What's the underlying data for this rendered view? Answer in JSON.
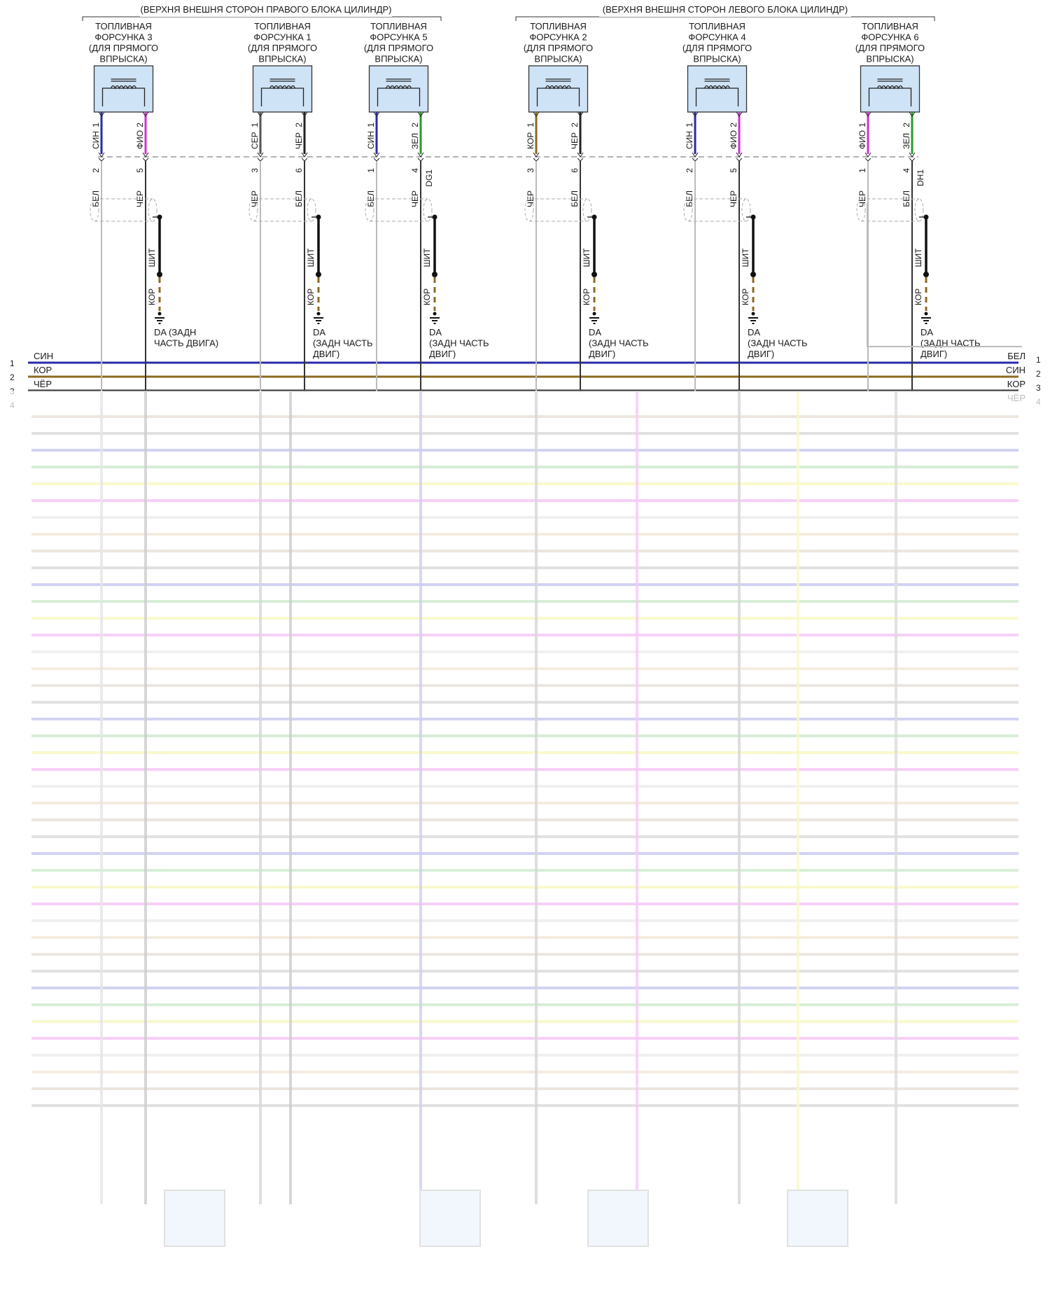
{
  "groups": [
    {
      "label": "(ВЕРХНЯ ВНЕШНЯ СТОРОН ПРАВОГО БЛОКА ЦИЛИНДР)"
    },
    {
      "label": "(ВЕРХНЯ ВНЕШНЯ СТОРОН ЛЕВОГО БЛОКА ЦИЛИНДР)"
    }
  ],
  "injectors": [
    {
      "title": [
        "ТОПЛИВНАЯ",
        "ФОРСУНКА 3",
        "(ДЛЯ ПРЯМОГО",
        "ВПРЫСКА)"
      ],
      "pin_top": [
        "1",
        "2"
      ],
      "wire_top": [
        "СИН",
        "ФИО"
      ],
      "wire_top_color": [
        "#2a2aa8",
        "#d030d0"
      ],
      "pin_bot": [
        "2",
        "5"
      ],
      "wire_bot": [
        "БЕЛ",
        "ЧЕР"
      ],
      "conn": "",
      "shield": "ШИТ",
      "gnd_wire": "КОР",
      "ground": [
        "DA (ЗАДН",
        "ЧАСТЬ ДВИГА)"
      ]
    },
    {
      "title": [
        "ТОПЛИВНАЯ",
        "ФОРСУНКА 1",
        "(ДЛЯ ПРЯМОГО",
        "ВПРЫСКА)"
      ],
      "pin_top": [
        "1",
        "2"
      ],
      "wire_top": [
        "СЕР",
        "ЧЕР"
      ],
      "wire_top_color": [
        "#555555",
        "#222222"
      ],
      "pin_bot": [
        "3",
        "6"
      ],
      "wire_bot": [
        "ЧЕР",
        "БЕЛ"
      ],
      "conn": "",
      "shield": "ШИТ",
      "gnd_wire": "КОР",
      "ground": [
        "DA",
        "(ЗАДН ЧАСТЬ",
        "ДВИГ)"
      ]
    },
    {
      "title": [
        "ТОПЛИВНАЯ",
        "ФОРСУНКА 5",
        "(ДЛЯ ПРЯМОГО",
        "ВПРЫСКА)"
      ],
      "pin_top": [
        "1",
        "2"
      ],
      "wire_top": [
        "СИН",
        "ЗЕЛ"
      ],
      "wire_top_color": [
        "#2a2aa8",
        "#2a9a2a"
      ],
      "pin_bot": [
        "1",
        "4"
      ],
      "wire_bot": [
        "БЕЛ",
        "ЧЕР"
      ],
      "conn": "DG1",
      "shield": "ШИТ",
      "gnd_wire": "КОР",
      "ground": [
        "DA",
        "(ЗАДН ЧАСТЬ",
        "ДВИГ)"
      ]
    },
    {
      "title": [
        "ТОПЛИВНАЯ",
        "ФОРСУНКА 2",
        "(ДЛЯ ПРЯМОГО",
        "ВПРЫСКА)"
      ],
      "pin_top": [
        "1",
        "2"
      ],
      "wire_top": [
        "КОР",
        "ЧЕР"
      ],
      "wire_top_color": [
        "#8a6a20",
        "#222222"
      ],
      "pin_bot": [
        "3",
        "6"
      ],
      "wire_bot": [
        "ЧЕР",
        "БЕЛ"
      ],
      "conn": "",
      "shield": "ШИТ",
      "gnd_wire": "КОР",
      "ground": [
        "DA",
        "(ЗАДН ЧАСТЬ",
        "ДВИГ)"
      ]
    },
    {
      "title": [
        "ТОПЛИВНАЯ",
        "ФОРСУНКА 4",
        "(ДЛЯ ПРЯМОГО",
        "ВПРЫСКА)"
      ],
      "pin_top": [
        "1",
        "2"
      ],
      "wire_top": [
        "СИН",
        "ФИО"
      ],
      "wire_top_color": [
        "#2a2aa8",
        "#d030d0"
      ],
      "pin_bot": [
        "2",
        "5"
      ],
      "wire_bot": [
        "БЕЛ",
        "ЧЕР"
      ],
      "conn": "",
      "shield": "ШИТ",
      "gnd_wire": "КОР",
      "ground": [
        "DA",
        "(ЗАДН ЧАСТЬ",
        "ДВИГ)"
      ]
    },
    {
      "title": [
        "ТОПЛИВНАЯ",
        "ФОРСУНКА 6",
        "(ДЛЯ ПРЯМОГО",
        "ВПРЫСКА)"
      ],
      "pin_top": [
        "1",
        "2"
      ],
      "wire_top": [
        "ФИО",
        "ЗЕЛ"
      ],
      "wire_top_color": [
        "#d030d0",
        "#2a9a2a"
      ],
      "pin_bot": [
        "1",
        "4"
      ],
      "wire_bot": [
        "ЧЕР",
        "БЕЛ"
      ],
      "conn": "DH1",
      "shield": "ШИТ",
      "gnd_wire": "КОР",
      "ground": [
        "DA",
        "(ЗАДН ЧАСТЬ",
        "ДВИГ)"
      ]
    }
  ],
  "bus": [
    {
      "num": "1",
      "left": "СИН",
      "right": "БЕЛ",
      "color": "#2a2aa8"
    },
    {
      "num": "2",
      "left": "КОР",
      "right": "СИН",
      "color": "#8a6a20"
    },
    {
      "num": "3",
      "left": "ЧЁР",
      "right": "КОР",
      "color": "#222222"
    },
    {
      "num": "4",
      "left": "",
      "right": "ЧЁР",
      "color": "#222222"
    }
  ],
  "faded_colors": [
    "#b7a488",
    "#8f8f8f",
    "#5a5ad8",
    "#6cbf6c",
    "#e7e74a",
    "#e050e0",
    "#c8c8c8",
    "#d8b88a"
  ]
}
